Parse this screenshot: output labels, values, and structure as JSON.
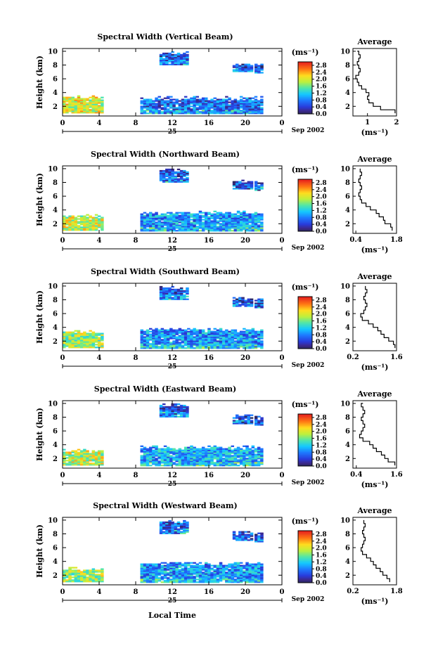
{
  "figure": {
    "x_axis_label": "Local Time",
    "date_day": "25",
    "date_month_year": "Sep 2002",
    "units_label": "(ms⁻¹)",
    "average_title": "Average",
    "average_units": "(ms⁻¹)"
  },
  "chart_data": [
    {
      "type": "heatmap",
      "title": "Spectral Width (Vertical Beam)",
      "ylabel": "Height (km)",
      "x_ticks": [
        "0",
        "4",
        "8",
        "12",
        "16",
        "20",
        "0"
      ],
      "y_ticks": [
        "2",
        "4",
        "6",
        "8",
        "10"
      ],
      "xlim": [
        0,
        24
      ],
      "ylim": [
        0.6,
        10.4
      ],
      "colorbar": {
        "ticks": [
          "0.0",
          "0.4",
          "0.8",
          "1.2",
          "1.6",
          "2.0",
          "2.4",
          "2.8"
        ],
        "range": [
          0,
          3.0
        ]
      },
      "data_blocks": [
        {
          "t0": 0.0,
          "t1": 4.4,
          "h0": 1.0,
          "h1": 3.5,
          "level": 2.0
        },
        {
          "t0": 8.5,
          "t1": 21.8,
          "h0": 0.9,
          "h1": 3.4,
          "level": 0.7
        },
        {
          "t0": 10.6,
          "t1": 13.8,
          "h0": 8.0,
          "h1": 10.0,
          "level": 0.6
        },
        {
          "t0": 18.6,
          "t1": 20.6,
          "h0": 7.0,
          "h1": 8.4,
          "level": 0.5
        },
        {
          "t0": 21.0,
          "t1": 21.7,
          "h0": 6.8,
          "h1": 8.3,
          "level": 0.5
        }
      ],
      "average": {
        "xlim": [
          0.5,
          2.0
        ],
        "xticks": [
          "1",
          "2"
        ],
        "xtick_values": [
          1,
          2
        ],
        "heights": [
          1.0,
          1.5,
          2.0,
          2.5,
          3.0,
          3.5,
          4.0,
          4.5,
          5.0,
          5.5,
          6.0,
          6.5,
          7.0,
          7.5,
          8.0,
          8.5,
          9.0,
          9.5,
          10.0
        ],
        "values": [
          1.95,
          1.45,
          1.2,
          1.05,
          1.0,
          1.05,
          0.95,
          0.8,
          0.7,
          0.65,
          0.6,
          0.7,
          0.75,
          0.7,
          0.65,
          0.7,
          0.75,
          0.7,
          0.65
        ]
      }
    },
    {
      "type": "heatmap",
      "title": "Spectral Width (Northward Beam)",
      "ylabel": "Height (km)",
      "x_ticks": [
        "0",
        "4",
        "8",
        "12",
        "16",
        "20",
        "0"
      ],
      "y_ticks": [
        "2",
        "4",
        "6",
        "8",
        "10"
      ],
      "xlim": [
        0,
        24
      ],
      "ylim": [
        0.6,
        10.4
      ],
      "colorbar": {
        "ticks": [
          "0.0",
          "0.4",
          "0.8",
          "1.2",
          "1.6",
          "2.0",
          "2.4",
          "2.8"
        ],
        "range": [
          0,
          3.0
        ]
      },
      "data_blocks": [
        {
          "t0": 0.0,
          "t1": 4.4,
          "h0": 1.0,
          "h1": 3.3,
          "level": 1.9
        },
        {
          "t0": 8.5,
          "t1": 21.8,
          "h0": 0.9,
          "h1": 3.8,
          "level": 0.9
        },
        {
          "t0": 10.6,
          "t1": 13.8,
          "h0": 8.0,
          "h1": 10.0,
          "level": 0.6
        },
        {
          "t0": 18.6,
          "t1": 20.6,
          "h0": 7.0,
          "h1": 8.4,
          "level": 0.5
        },
        {
          "t0": 21.0,
          "t1": 21.7,
          "h0": 6.8,
          "h1": 8.3,
          "level": 0.5
        }
      ],
      "average": {
        "xlim": [
          0.3,
          1.8
        ],
        "xticks": [
          "0.4",
          "1.8"
        ],
        "xtick_values": [
          0.4,
          1.8
        ],
        "heights": [
          1.0,
          1.5,
          2.0,
          2.5,
          3.0,
          3.5,
          4.0,
          4.5,
          5.0,
          5.5,
          6.0,
          6.5,
          7.0,
          7.5,
          8.0,
          8.5,
          9.0,
          9.5,
          10.0
        ],
        "values": [
          1.65,
          1.6,
          1.4,
          1.35,
          1.2,
          1.1,
          0.9,
          0.75,
          0.6,
          0.55,
          0.5,
          0.55,
          0.6,
          0.55,
          0.5,
          0.55,
          0.6,
          0.55,
          0.55
        ]
      }
    },
    {
      "type": "heatmap",
      "title": "Spectral Width (Southward Beam)",
      "ylabel": "Height (km)",
      "x_ticks": [
        "0",
        "4",
        "8",
        "12",
        "16",
        "20",
        "0"
      ],
      "y_ticks": [
        "2",
        "4",
        "6",
        "8",
        "10"
      ],
      "xlim": [
        0,
        24
      ],
      "ylim": [
        0.6,
        10.4
      ],
      "colorbar": {
        "ticks": [
          "0.0",
          "0.4",
          "0.8",
          "1.2",
          "1.6",
          "2.0",
          "2.4",
          "2.8"
        ],
        "range": [
          0,
          3.0
        ]
      },
      "data_blocks": [
        {
          "t0": 0.0,
          "t1": 4.4,
          "h0": 1.0,
          "h1": 3.6,
          "level": 1.8
        },
        {
          "t0": 8.5,
          "t1": 21.8,
          "h0": 0.9,
          "h1": 3.9,
          "level": 0.9
        },
        {
          "t0": 10.6,
          "t1": 13.8,
          "h0": 8.0,
          "h1": 10.0,
          "level": 0.6
        },
        {
          "t0": 18.6,
          "t1": 20.6,
          "h0": 7.0,
          "h1": 8.4,
          "level": 0.5
        },
        {
          "t0": 21.0,
          "t1": 21.7,
          "h0": 6.8,
          "h1": 8.3,
          "level": 0.5
        }
      ],
      "average": {
        "xlim": [
          0.2,
          1.6
        ],
        "xticks": [
          "0.2",
          "1.6"
        ],
        "xtick_values": [
          0.2,
          1.6
        ],
        "heights": [
          1.0,
          1.5,
          2.0,
          2.5,
          3.0,
          3.5,
          4.0,
          4.5,
          5.0,
          5.5,
          6.0,
          6.5,
          7.0,
          7.5,
          8.0,
          8.5,
          9.0,
          9.5,
          10.0
        ],
        "values": [
          1.55,
          1.5,
          1.35,
          1.2,
          1.1,
          1.0,
          0.85,
          0.7,
          0.5,
          0.45,
          0.55,
          0.6,
          0.65,
          0.6,
          0.55,
          0.6,
          0.65,
          0.6,
          0.6
        ]
      }
    },
    {
      "type": "heatmap",
      "title": "Spectral Width (Eastward Beam)",
      "ylabel": "Height (km)",
      "x_ticks": [
        "0",
        "4",
        "8",
        "12",
        "16",
        "20",
        "0"
      ],
      "y_ticks": [
        "2",
        "4",
        "6",
        "8",
        "10"
      ],
      "xlim": [
        0,
        24
      ],
      "ylim": [
        0.6,
        10.4
      ],
      "colorbar": {
        "ticks": [
          "0.0",
          "0.4",
          "0.8",
          "1.2",
          "1.6",
          "2.0",
          "2.4",
          "2.8"
        ],
        "range": [
          0,
          3.0
        ]
      },
      "data_blocks": [
        {
          "t0": 0.0,
          "t1": 4.4,
          "h0": 1.0,
          "h1": 3.4,
          "level": 1.9
        },
        {
          "t0": 8.5,
          "t1": 21.8,
          "h0": 0.9,
          "h1": 3.8,
          "level": 1.0
        },
        {
          "t0": 10.6,
          "t1": 13.8,
          "h0": 8.0,
          "h1": 10.0,
          "level": 0.6
        },
        {
          "t0": 18.6,
          "t1": 20.6,
          "h0": 7.0,
          "h1": 8.4,
          "level": 0.5
        },
        {
          "t0": 21.0,
          "t1": 21.7,
          "h0": 6.8,
          "h1": 8.3,
          "level": 0.5
        }
      ],
      "average": {
        "xlim": [
          0.3,
          1.6
        ],
        "xticks": [
          "0.4",
          "1.6"
        ],
        "xtick_values": [
          0.4,
          1.6
        ],
        "heights": [
          1.0,
          1.5,
          2.0,
          2.5,
          3.0,
          3.5,
          4.0,
          4.5,
          5.0,
          5.5,
          6.0,
          6.5,
          7.0,
          7.5,
          8.0,
          8.5,
          9.0,
          9.5,
          10.0
        ],
        "values": [
          1.55,
          1.35,
          1.25,
          1.15,
          1.0,
          0.9,
          0.8,
          0.6,
          0.5,
          0.55,
          0.6,
          0.65,
          0.6,
          0.55,
          0.6,
          0.65,
          0.6,
          0.55,
          0.6
        ]
      }
    },
    {
      "type": "heatmap",
      "title": "Spectral Width (Westward Beam)",
      "ylabel": "Height (km)",
      "x_ticks": [
        "0",
        "4",
        "8",
        "12",
        "16",
        "20",
        "0"
      ],
      "y_ticks": [
        "2",
        "4",
        "6",
        "8",
        "10"
      ],
      "xlim": [
        0,
        24
      ],
      "ylim": [
        0.6,
        10.4
      ],
      "colorbar": {
        "ticks": [
          "0.0",
          "0.4",
          "0.8",
          "1.2",
          "1.6",
          "2.0",
          "2.4",
          "2.8"
        ],
        "range": [
          0,
          3.0
        ]
      },
      "data_blocks": [
        {
          "t0": 0.0,
          "t1": 4.4,
          "h0": 1.0,
          "h1": 3.2,
          "level": 1.8
        },
        {
          "t0": 8.5,
          "t1": 21.8,
          "h0": 0.9,
          "h1": 3.9,
          "level": 0.9
        },
        {
          "t0": 10.6,
          "t1": 13.8,
          "h0": 8.0,
          "h1": 10.0,
          "level": 0.6
        },
        {
          "t0": 18.6,
          "t1": 20.6,
          "h0": 7.0,
          "h1": 8.4,
          "level": 0.5
        },
        {
          "t0": 21.0,
          "t1": 21.7,
          "h0": 6.8,
          "h1": 8.3,
          "level": 0.5
        }
      ],
      "average": {
        "xlim": [
          0.2,
          1.8
        ],
        "xticks": [
          "0.2",
          "1.8"
        ],
        "xtick_values": [
          0.2,
          1.8
        ],
        "heights": [
          1.0,
          1.5,
          2.0,
          2.5,
          3.0,
          3.5,
          4.0,
          4.5,
          5.0,
          5.5,
          6.0,
          6.5,
          7.0,
          7.5,
          8.0,
          8.5,
          9.0,
          9.5,
          10.0
        ],
        "values": [
          1.55,
          1.45,
          1.3,
          1.2,
          1.05,
          0.95,
          0.85,
          0.7,
          0.55,
          0.5,
          0.55,
          0.6,
          0.65,
          0.6,
          0.55,
          0.6,
          0.65,
          0.6,
          0.6
        ]
      }
    }
  ]
}
